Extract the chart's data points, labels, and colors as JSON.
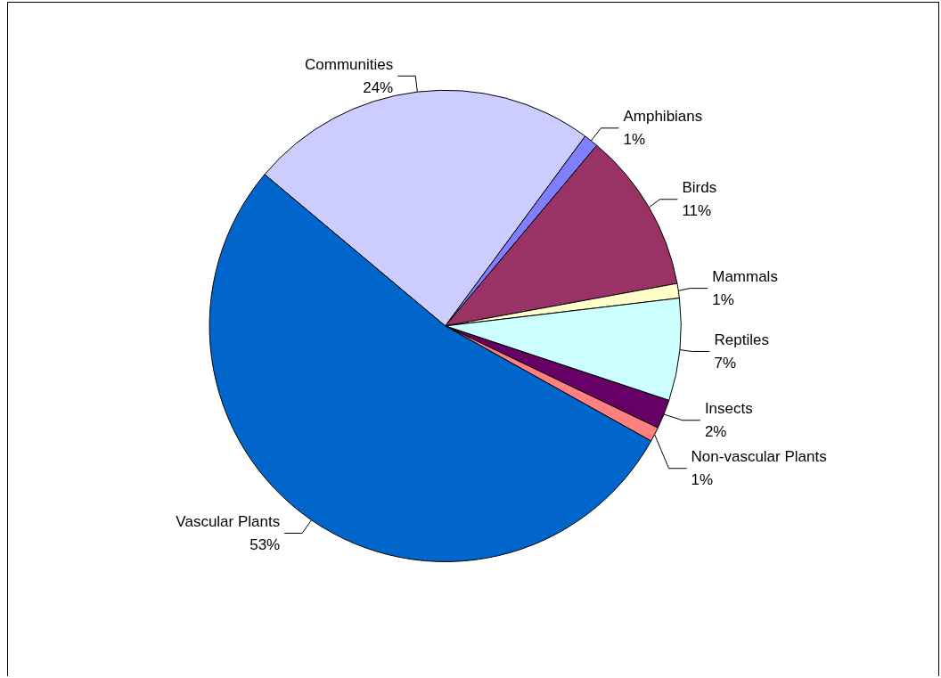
{
  "chart_data": {
    "type": "pie",
    "categories": [
      "Communities",
      "Amphibians",
      "Birds",
      "Mammals",
      "Reptiles",
      "Insects",
      "Non-vascular Plants",
      "Vascular Plants"
    ],
    "values": [
      24,
      1,
      11,
      1,
      7,
      2,
      1,
      53
    ],
    "value_labels": [
      "24%",
      "1%",
      "11%",
      "1%",
      "7%",
      "2%",
      "1%",
      "53%"
    ],
    "colors": [
      "#ccccff",
      "#8080ff",
      "#993366",
      "#ffffcc",
      "#ccffff",
      "#660066",
      "#ff8080",
      "#0066cc"
    ],
    "legend": false
  }
}
